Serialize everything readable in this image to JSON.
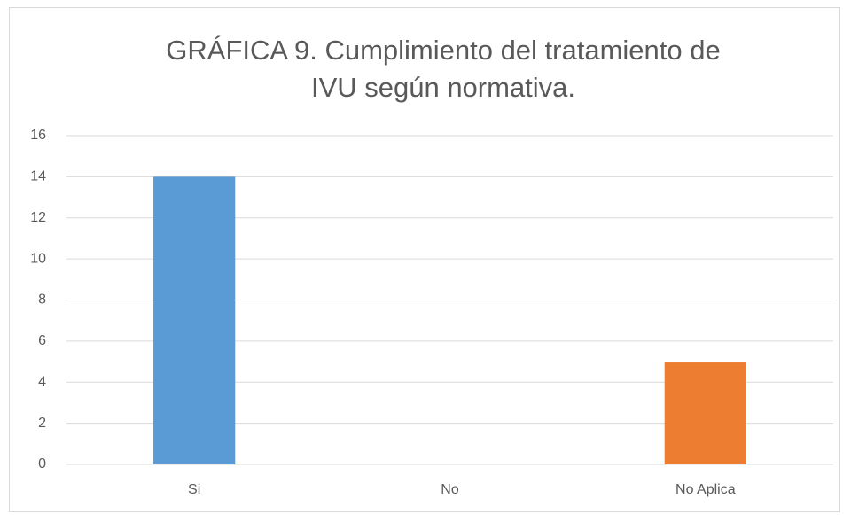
{
  "chart_data": {
    "type": "bar",
    "title": "GRÁFICA 9. Cumplimiento del tratamiento de IVU según normativa.",
    "categories": [
      "Si",
      "No",
      "No Aplica"
    ],
    "values": [
      14,
      0,
      5
    ],
    "colors": [
      "#5b9bd5",
      "#a5a5a5",
      "#ed7d31"
    ],
    "ylim": [
      0,
      16
    ],
    "yticks": [
      0,
      2,
      4,
      6,
      8,
      10,
      12,
      14,
      16
    ],
    "grid": true
  }
}
